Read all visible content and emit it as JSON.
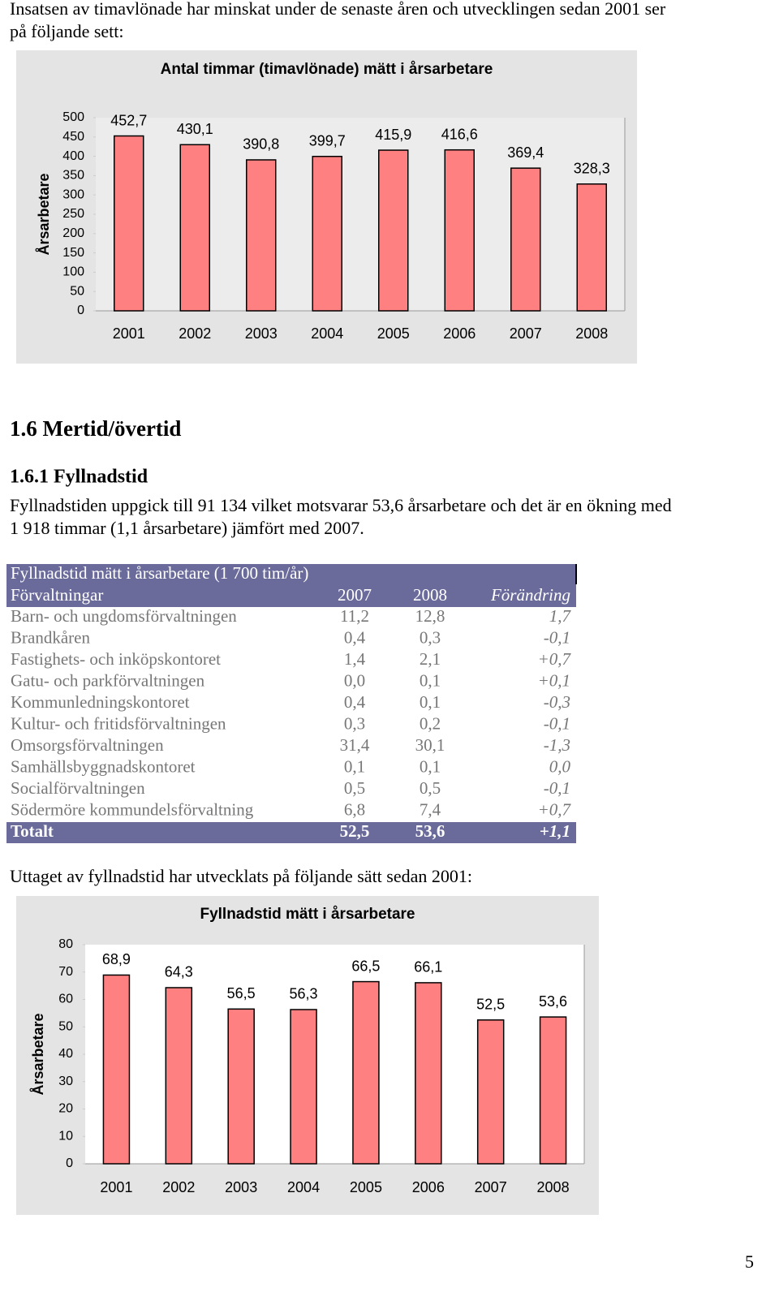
{
  "intro": [
    "Insatsen av timavlönade har minskat under de senaste åren och utvecklingen sedan 2001 ser",
    "på följande sett:"
  ],
  "heading": "1.6 Mertid/övertid",
  "subheading": "1.6.1 Fyllnadstid",
  "paragraph": [
    "Fyllnadstiden uppgick till 91 134 vilket motsvarar 53,6 årsarbetare och det är en ökning med",
    "1 918 timmar (1,1 årsarbetare) jämfört med 2007."
  ],
  "table": {
    "title": "Fyllnadstid mätt  i årsarbetare (1 700 tim/år)",
    "header": [
      "Förvaltningar",
      "2007",
      "2008",
      "Förändring"
    ],
    "rows": [
      [
        "Barn- och ungdomsförvaltningen",
        "11,2",
        "12,8",
        "1,7"
      ],
      [
        "Brandkåren",
        "0,4",
        "0,3",
        "-0,1"
      ],
      [
        "Fastighets- och inköpskontoret",
        "1,4",
        "2,1",
        "+0,7"
      ],
      [
        "Gatu- och parkförvaltningen",
        "0,0",
        "0,1",
        "+0,1"
      ],
      [
        "Kommunledningskontoret",
        "0,4",
        "0,1",
        "-0,3"
      ],
      [
        "Kultur- och fritidsförvaltningen",
        "0,3",
        "0,2",
        "-0,1"
      ],
      [
        "Omsorgsförvaltningen",
        "31,4",
        "30,1",
        "-1,3"
      ],
      [
        "Samhällsbyggnadskontoret",
        "0,1",
        "0,1",
        "0,0"
      ],
      [
        "Socialförvaltningen",
        "0,5",
        "0,5",
        "-0,1"
      ],
      [
        "Södermöre kommundelsförvaltning",
        "6,8",
        "7,4",
        "+0,7"
      ]
    ],
    "total": [
      "Totalt",
      "52,5",
      "53,6",
      "+1,1"
    ]
  },
  "outro": "Uttaget av fyllnadstid har utvecklats på följande sätt sedan 2001:",
  "page_number": "5",
  "chart_data": [
    {
      "type": "bar",
      "title": "Antal timmar (timavlönade) mätt i årsarbetare",
      "y_label": "Årsarbetare",
      "categories": [
        "2001",
        "2002",
        "2003",
        "2004",
        "2005",
        "2006",
        "2007",
        "2008"
      ],
      "values": [
        452.7,
        430.1,
        390.8,
        399.7,
        415.9,
        416.6,
        369.4,
        328.3
      ],
      "value_labels": [
        "452,7",
        "430,1",
        "390,8",
        "399,7",
        "415,9",
        "416,6",
        "369,4",
        "328,3"
      ],
      "color": "#ff8080",
      "ylim": [
        0,
        500
      ],
      "yticks": [
        0,
        50,
        100,
        150,
        200,
        250,
        300,
        350,
        400,
        450,
        500
      ]
    },
    {
      "type": "bar",
      "title": "Fyllnadstid mätt i årsarbetare",
      "y_label": "Årsarbetare",
      "categories": [
        "2001",
        "2002",
        "2003",
        "2004",
        "2005",
        "2006",
        "2007",
        "2008"
      ],
      "values": [
        68.9,
        64.3,
        56.5,
        56.3,
        66.5,
        66.1,
        52.5,
        53.6
      ],
      "value_labels": [
        "68,9",
        "64,3",
        "56,5",
        "56,3",
        "66,5",
        "66,1",
        "52,5",
        "53,6"
      ],
      "color": "#ff8080",
      "ylim": [
        0,
        80
      ],
      "yticks": [
        0,
        10,
        20,
        30,
        40,
        50,
        60,
        70,
        80
      ]
    }
  ]
}
